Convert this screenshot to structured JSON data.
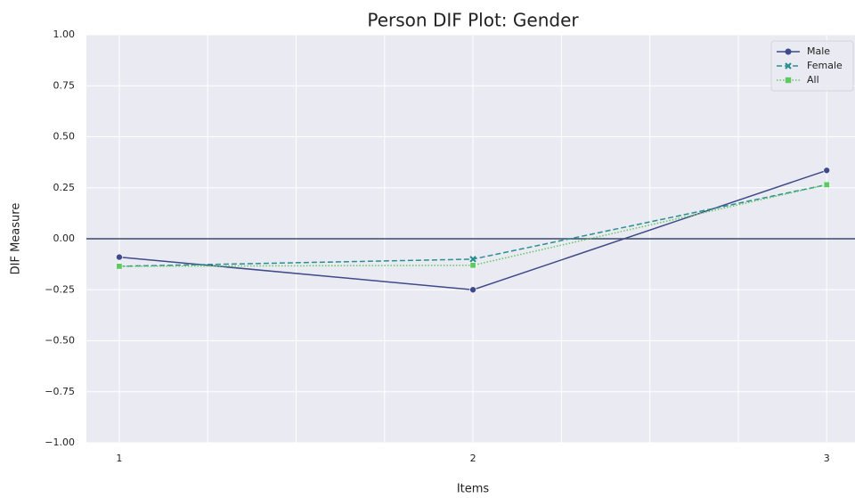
{
  "chart_data": {
    "type": "line",
    "title": "Person DIF Plot: Gender",
    "x_label": "Items",
    "y_label": "DIF Measure",
    "x": [
      1,
      2,
      3
    ],
    "series": [
      {
        "name": "Male",
        "color": "#3e4a89",
        "dash": "solid",
        "marker": "circle",
        "values": [
          -0.09,
          -0.25,
          0.335
        ]
      },
      {
        "name": "Female",
        "color": "#2a8f8f",
        "dash": "dashed",
        "marker": "x",
        "values": [
          -0.135,
          -0.1,
          0.265
        ]
      },
      {
        "name": "All",
        "color": "#5ec962",
        "dash": "dotted",
        "marker": "square",
        "values": [
          -0.135,
          -0.13,
          0.265
        ]
      }
    ],
    "xlim": [
      0.907,
      3.08
    ],
    "xticks": [
      1,
      2,
      3
    ],
    "x_minor_grid": [
      1.25,
      1.5,
      1.75,
      2.25,
      2.5,
      2.75
    ],
    "ylim": [
      -1,
      1
    ],
    "yticks": [
      {
        "value": -1,
        "label": "−1.00"
      },
      {
        "value": -0.75,
        "label": "−0.75"
      },
      {
        "value": -0.5,
        "label": "−0.50"
      },
      {
        "value": -0.25,
        "label": "−0.25"
      },
      {
        "value": 0,
        "label": "0.00"
      },
      {
        "value": 0.25,
        "label": "0.25"
      },
      {
        "value": 0.5,
        "label": "0.50"
      },
      {
        "value": 0.75,
        "label": "0.75"
      },
      {
        "value": 1,
        "label": "1.00"
      }
    ],
    "reference_line": 0,
    "reference_color": "#3b4a6b",
    "grid": true,
    "legend": "upper right"
  }
}
